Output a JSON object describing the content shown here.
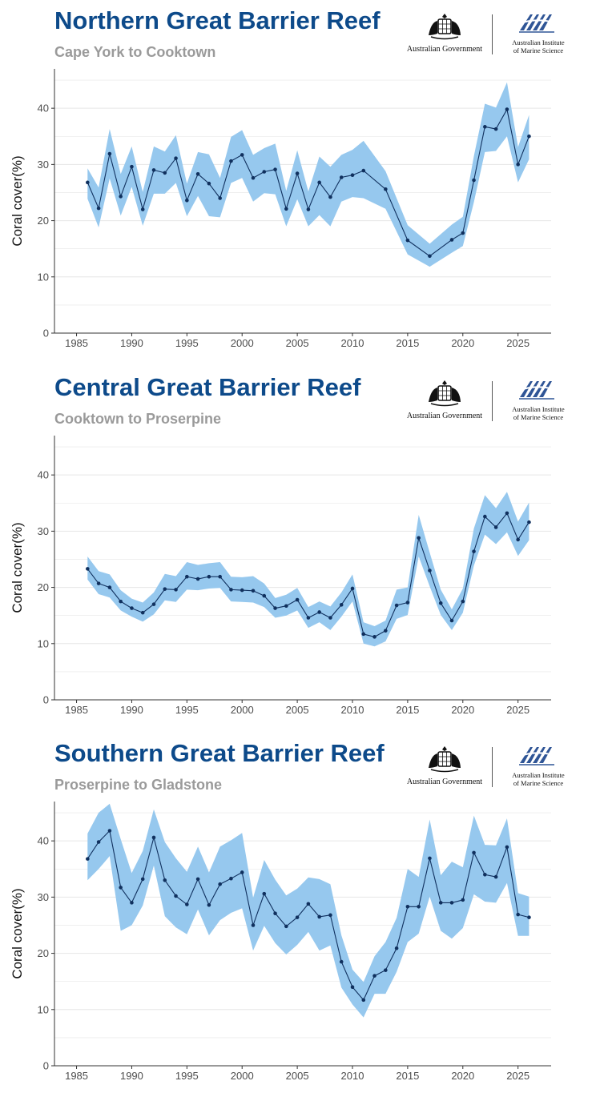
{
  "colors": {
    "title": "#0d4a8a",
    "subtitle": "#9a9a9a",
    "band": "#96c8ee",
    "line": "#10305e",
    "axis": "#333333",
    "grid": "#e6e6e6"
  },
  "logos": {
    "government": "Australian Government",
    "aims_line1": "Australian Institute",
    "aims_line2": "of Marine Science"
  },
  "panels": [
    {
      "title": "Northern Great Barrier Reef",
      "subtitle": "Cape York to Cooktown"
    },
    {
      "title": "Central Great Barrier Reef",
      "subtitle": "Cooktown to Proserpine"
    },
    {
      "title": "Southern Great Barrier Reef",
      "subtitle": "Proserpine to Gladstone"
    }
  ],
  "chart_data": [
    {
      "type": "line",
      "title": "Northern Great Barrier Reef",
      "subtitle": "Cape York to Cooktown",
      "ylabel": "Coral cover(%)",
      "xlim": [
        1983,
        2028
      ],
      "ylim": [
        0,
        47
      ],
      "xticks": [
        1985,
        1990,
        1995,
        2000,
        2005,
        2010,
        2015,
        2020,
        2025
      ],
      "yticks": [
        0,
        10,
        20,
        30,
        40
      ],
      "grid": true,
      "x": [
        1986,
        1987,
        1988,
        1989,
        1990,
        1991,
        1992,
        1993,
        1994,
        1995,
        1996,
        1997,
        1998,
        1999,
        2000,
        2001,
        2002,
        2003,
        2004,
        2005,
        2006,
        2007,
        2008,
        2009,
        2010,
        2011,
        2013,
        2015,
        2017,
        2019,
        2020,
        2021,
        2022,
        2023,
        2024,
        2025,
        2026
      ],
      "values": [
        26.8,
        22.2,
        31.9,
        24.3,
        29.6,
        22.0,
        29.0,
        28.5,
        31.1,
        23.6,
        28.3,
        26.6,
        24.0,
        30.6,
        31.7,
        27.6,
        28.7,
        29.1,
        22.1,
        28.4,
        22.0,
        26.8,
        24.2,
        27.7,
        28.1,
        28.9,
        25.6,
        16.5,
        13.7,
        16.6,
        17.8,
        27.2,
        36.7,
        36.3,
        39.8,
        30.0,
        35.0
      ],
      "lower": [
        23.9,
        18.8,
        27.5,
        20.9,
        26.0,
        19.1,
        24.8,
        24.8,
        26.7,
        20.8,
        24.4,
        20.8,
        20.6,
        26.7,
        27.6,
        23.4,
        24.9,
        24.7,
        19.0,
        23.8,
        19.0,
        21.0,
        19.0,
        23.4,
        24.2,
        24.0,
        22.1,
        14.0,
        11.8,
        14.3,
        15.5,
        23.3,
        32.2,
        32.4,
        35.0,
        26.8,
        30.9
      ],
      "upper": [
        29.3,
        25.9,
        36.3,
        28.3,
        33.2,
        25.1,
        33.2,
        32.3,
        35.2,
        26.6,
        32.2,
        31.8,
        27.6,
        34.9,
        36.1,
        31.7,
        32.9,
        33.7,
        25.3,
        32.5,
        25.2,
        31.4,
        29.6,
        31.7,
        32.6,
        34.2,
        28.8,
        19.2,
        15.9,
        19.3,
        20.7,
        31.5,
        40.8,
        40.1,
        44.6,
        33.1,
        38.8
      ]
    },
    {
      "type": "line",
      "title": "Central Great Barrier Reef",
      "subtitle": "Cooktown to Proserpine",
      "ylabel": "Coral cover(%)",
      "xlim": [
        1983,
        2028
      ],
      "ylim": [
        0,
        47
      ],
      "xticks": [
        1985,
        1990,
        1995,
        2000,
        2005,
        2010,
        2015,
        2020,
        2025
      ],
      "yticks": [
        0,
        10,
        20,
        30,
        40
      ],
      "grid": true,
      "x": [
        1986,
        1987,
        1988,
        1989,
        1990,
        1991,
        1992,
        1993,
        1994,
        1995,
        1996,
        1997,
        1998,
        1999,
        2000,
        2001,
        2002,
        2003,
        2004,
        2005,
        2006,
        2007,
        2008,
        2009,
        2010,
        2011,
        2012,
        2013,
        2014,
        2015,
        2016,
        2017,
        2018,
        2019,
        2020,
        2021,
        2022,
        2023,
        2024,
        2025,
        2026
      ],
      "values": [
        23.3,
        20.7,
        20.0,
        17.5,
        16.3,
        15.5,
        17.0,
        19.7,
        19.6,
        21.9,
        21.5,
        21.9,
        21.9,
        19.6,
        19.5,
        19.4,
        18.5,
        16.3,
        16.7,
        17.8,
        14.6,
        15.6,
        14.6,
        16.9,
        19.8,
        11.7,
        11.2,
        12.3,
        16.8,
        17.3,
        28.8,
        23.0,
        17.2,
        14.1,
        17.5,
        26.4,
        32.6,
        30.7,
        33.2,
        28.5,
        31.6
      ],
      "lower": [
        21.4,
        18.8,
        18.2,
        15.9,
        14.8,
        13.9,
        15.2,
        17.7,
        17.4,
        19.6,
        19.5,
        19.8,
        19.9,
        17.5,
        17.4,
        17.3,
        16.5,
        14.6,
        15.0,
        15.9,
        12.8,
        13.8,
        12.4,
        14.8,
        17.5,
        10.0,
        9.5,
        10.4,
        14.4,
        15.1,
        25.5,
        20.2,
        15.1,
        12.4,
        15.5,
        23.9,
        29.4,
        27.7,
        29.8,
        25.6,
        28.4
      ],
      "upper": [
        25.5,
        22.9,
        22.3,
        19.5,
        18.0,
        17.3,
        19.1,
        22.4,
        22.0,
        24.5,
        24.0,
        24.3,
        24.5,
        21.9,
        21.8,
        22.0,
        20.7,
        18.1,
        18.7,
        19.9,
        16.5,
        17.5,
        16.6,
        19.1,
        22.3,
        13.8,
        13.1,
        14.1,
        19.6,
        20.0,
        32.9,
        26.2,
        19.6,
        16.1,
        19.8,
        30.5,
        36.4,
        34.1,
        37.0,
        31.7,
        35.1
      ]
    },
    {
      "type": "line",
      "title": "Southern Great Barrier Reef",
      "subtitle": "Proserpine to Gladstone",
      "ylabel": "Coral cover(%)",
      "xlim": [
        1983,
        2028
      ],
      "ylim": [
        0,
        47
      ],
      "xticks": [
        1985,
        1990,
        1995,
        2000,
        2005,
        2010,
        2015,
        2020,
        2025
      ],
      "yticks": [
        0,
        10,
        20,
        30,
        40
      ],
      "grid": true,
      "x": [
        1986,
        1987,
        1988,
        1989,
        1990,
        1991,
        1992,
        1993,
        1994,
        1995,
        1996,
        1997,
        1998,
        1999,
        2000,
        2001,
        2002,
        2003,
        2004,
        2005,
        2006,
        2007,
        2008,
        2009,
        2010,
        2011,
        2012,
        2013,
        2014,
        2015,
        2016,
        2017,
        2018,
        2019,
        2020,
        2021,
        2022,
        2023,
        2024,
        2025,
        2026
      ],
      "values": [
        36.8,
        39.8,
        41.8,
        31.7,
        29.0,
        33.2,
        40.6,
        33.0,
        30.2,
        28.7,
        33.2,
        28.6,
        32.3,
        33.3,
        34.4,
        25.0,
        30.6,
        27.1,
        24.8,
        26.4,
        28.8,
        26.5,
        26.8,
        18.5,
        14.0,
        11.7,
        16.0,
        17.0,
        20.9,
        28.3,
        28.3,
        36.9,
        29.0,
        29.0,
        29.5,
        37.9,
        34.0,
        33.6,
        38.9,
        26.9,
        26.4
      ],
      "lower": [
        33.0,
        35.0,
        37.3,
        24.0,
        25.0,
        28.5,
        35.6,
        26.6,
        24.6,
        23.4,
        27.8,
        23.2,
        25.9,
        27.2,
        28.0,
        20.5,
        24.9,
        21.8,
        19.8,
        21.5,
        23.8,
        20.5,
        21.4,
        13.9,
        10.9,
        8.6,
        12.8,
        12.8,
        16.7,
        22.0,
        23.5,
        30.1,
        24.0,
        22.6,
        24.5,
        30.5,
        29.2,
        29.0,
        32.5,
        23.1,
        23.1
      ],
      "upper": [
        41.3,
        45.0,
        46.6,
        40.3,
        34.3,
        38.2,
        45.6,
        39.8,
        36.9,
        34.5,
        39.0,
        34.4,
        39.0,
        40.1,
        41.4,
        29.9,
        36.6,
        33.1,
        30.3,
        31.5,
        33.5,
        33.2,
        32.3,
        23.2,
        17.1,
        14.9,
        19.5,
        22.0,
        26.3,
        35.0,
        33.6,
        43.8,
        33.9,
        36.3,
        35.3,
        44.5,
        39.3,
        39.2,
        44.0,
        30.7,
        30.1
      ]
    }
  ]
}
